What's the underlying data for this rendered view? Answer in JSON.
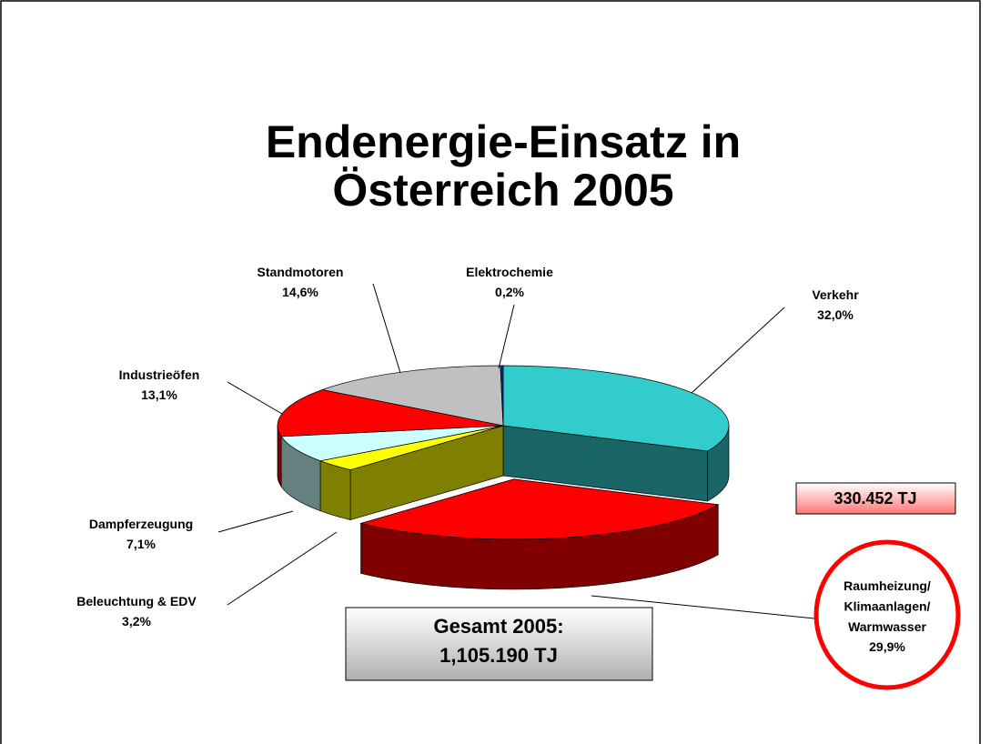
{
  "chart_data": {
    "type": "pie",
    "title": "Endenergie-Einsatz in\nÖsterreich 2005",
    "categories": [
      "Verkehr",
      "Raumheizung/\nKlimaanlagen/\nWarmwasser",
      "Beleuchtung & EDV",
      "Dampferzeugung",
      "Industrieöfen",
      "Standmotoren",
      "Elektrochemie"
    ],
    "values": [
      32.0,
      29.9,
      3.2,
      7.1,
      13.1,
      14.6,
      0.2
    ],
    "value_labels": [
      "32,0%",
      "29,9%",
      "3,2%",
      "7,1%",
      "13,1%",
      "14,6%",
      "0,2%"
    ],
    "colors": [
      "#33cccc",
      "#ff0000",
      "#ffff00",
      "#ccffff",
      "#ff0000",
      "#c0c0c0",
      "#003399"
    ],
    "explode": [
      false,
      true,
      false,
      false,
      false,
      false,
      false
    ],
    "annotations": [
      "330.452 TJ",
      "Gesamt 2005:\n1,105.190 TJ"
    ]
  }
}
